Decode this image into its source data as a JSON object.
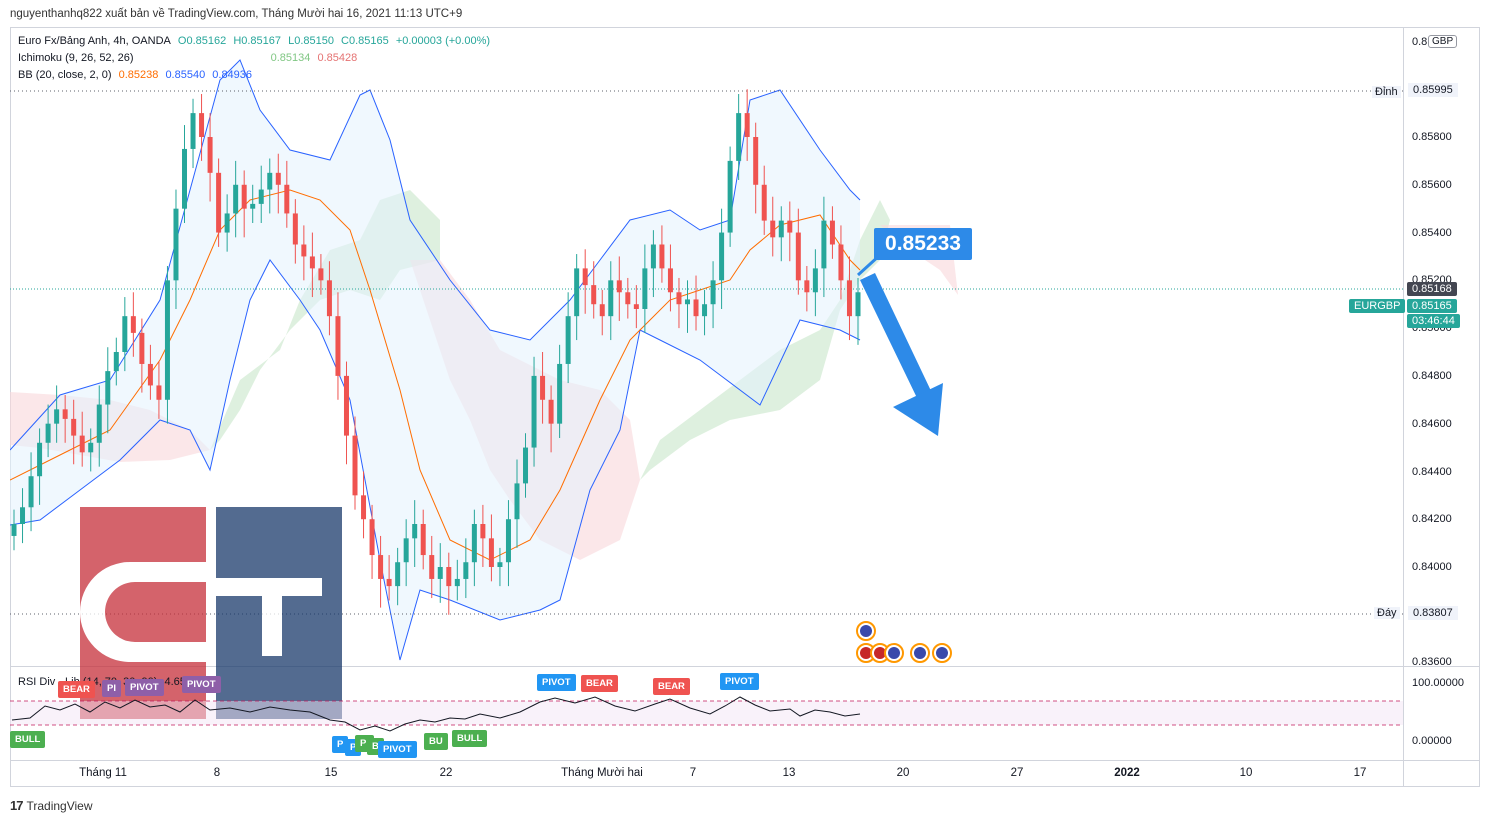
{
  "header": {
    "attribution": "nguyenthanhq822 xuất bản về TradingView.com, Tháng Mười hai 16, 2021 11:13 UTC+9"
  },
  "legend": {
    "symbol": "Euro Fx/Bảng Anh, 4h, OANDA",
    "o": "O0.85162",
    "h": "H0.85167",
    "l": "L0.85150",
    "c": "C0.85165",
    "chg": "+0.00003 (+0.00%)",
    "ichimoku_name": "Ichimoku (9, 26, 52, 26)",
    "ichimoku_a": "0.85134",
    "ichimoku_b": "0.85428",
    "bb_name": "BB (20, close, 2, 0)",
    "bb_mid": "0.85238",
    "bb_up": "0.85540",
    "bb_low": "0.84936",
    "rsi_name": "RSI Div - Lib (14, 70, 30, 90)",
    "rsi_tail": "4.6578"
  },
  "price_axis": {
    "currency": "GBP",
    "top_partial": "0.8",
    "ticks": [
      "0.85800",
      "0.85600",
      "0.85400",
      "0.85200",
      "0.84800",
      "0.84600",
      "0.84400",
      "0.84200",
      "0.84000",
      "0.83600"
    ],
    "high_label": "Đỉnh",
    "high_value": "0.85995",
    "low_label": "Đáy",
    "low_value": "0.83807",
    "last_value": "0.85168",
    "symbol_tag": "EURGBP",
    "symbol_price": "0.85165",
    "countdown": "03:46:44",
    "hidden_tick": "0.85000"
  },
  "rsi_axis": {
    "top": "100.00000",
    "bottom": "0.00000"
  },
  "time_axis": {
    "labels": [
      "Tháng 11",
      "8",
      "15",
      "22",
      "Tháng Mười hai",
      "7",
      "13",
      "20",
      "27",
      "2022",
      "10",
      "17"
    ]
  },
  "annotation": {
    "target_price": "0.85233"
  },
  "signals": {
    "bear": "BEAR",
    "bull": "BULL",
    "pivot": "PIVOT",
    "bu": "BU",
    "p": "P",
    "pi": "PI",
    "b": "B"
  },
  "footer": {
    "brand": "TradingView",
    "logo_text": "17"
  },
  "colors": {
    "up": "#26a69a",
    "down": "#ef5350",
    "bb": "#2962ff",
    "bb_mid": "#ff6d00",
    "cloud_green": "#a5d6a7",
    "cloud_red": "#f8bbd0",
    "arrow": "#2d8ae8"
  },
  "chart_data": {
    "type": "candlestick",
    "symbol": "EURGBP",
    "interval": "4h",
    "y_range": [
      0.836,
      0.86
    ],
    "key_levels": {
      "high": 0.85995,
      "low": 0.83807,
      "last": 0.85168
    },
    "close_path": [
      0.8418,
      0.8425,
      0.8438,
      0.8452,
      0.846,
      0.8466,
      0.8462,
      0.8455,
      0.8448,
      0.8452,
      0.8468,
      0.8482,
      0.849,
      0.8505,
      0.8498,
      0.8485,
      0.8476,
      0.847,
      0.852,
      0.855,
      0.8575,
      0.859,
      0.858,
      0.8565,
      0.854,
      0.8548,
      0.856,
      0.855,
      0.8552,
      0.8558,
      0.8565,
      0.856,
      0.8548,
      0.8535,
      0.853,
      0.8525,
      0.852,
      0.8505,
      0.848,
      0.8455,
      0.843,
      0.842,
      0.8405,
      0.8395,
      0.8392,
      0.8402,
      0.8412,
      0.8418,
      0.8405,
      0.8395,
      0.84,
      0.8392,
      0.8395,
      0.8402,
      0.8418,
      0.8412,
      0.84,
      0.8402,
      0.842,
      0.8435,
      0.845,
      0.848,
      0.847,
      0.846,
      0.8485,
      0.8505,
      0.8525,
      0.8518,
      0.851,
      0.8505,
      0.852,
      0.8515,
      0.851,
      0.8508,
      0.8525,
      0.8535,
      0.8525,
      0.8515,
      0.851,
      0.8512,
      0.8505,
      0.851,
      0.852,
      0.854,
      0.857,
      0.859,
      0.858,
      0.856,
      0.8545,
      0.8538,
      0.8545,
      0.854,
      0.852,
      0.8515,
      0.8525,
      0.8545,
      0.8535,
      0.852,
      0.8505,
      0.8515
    ]
  }
}
